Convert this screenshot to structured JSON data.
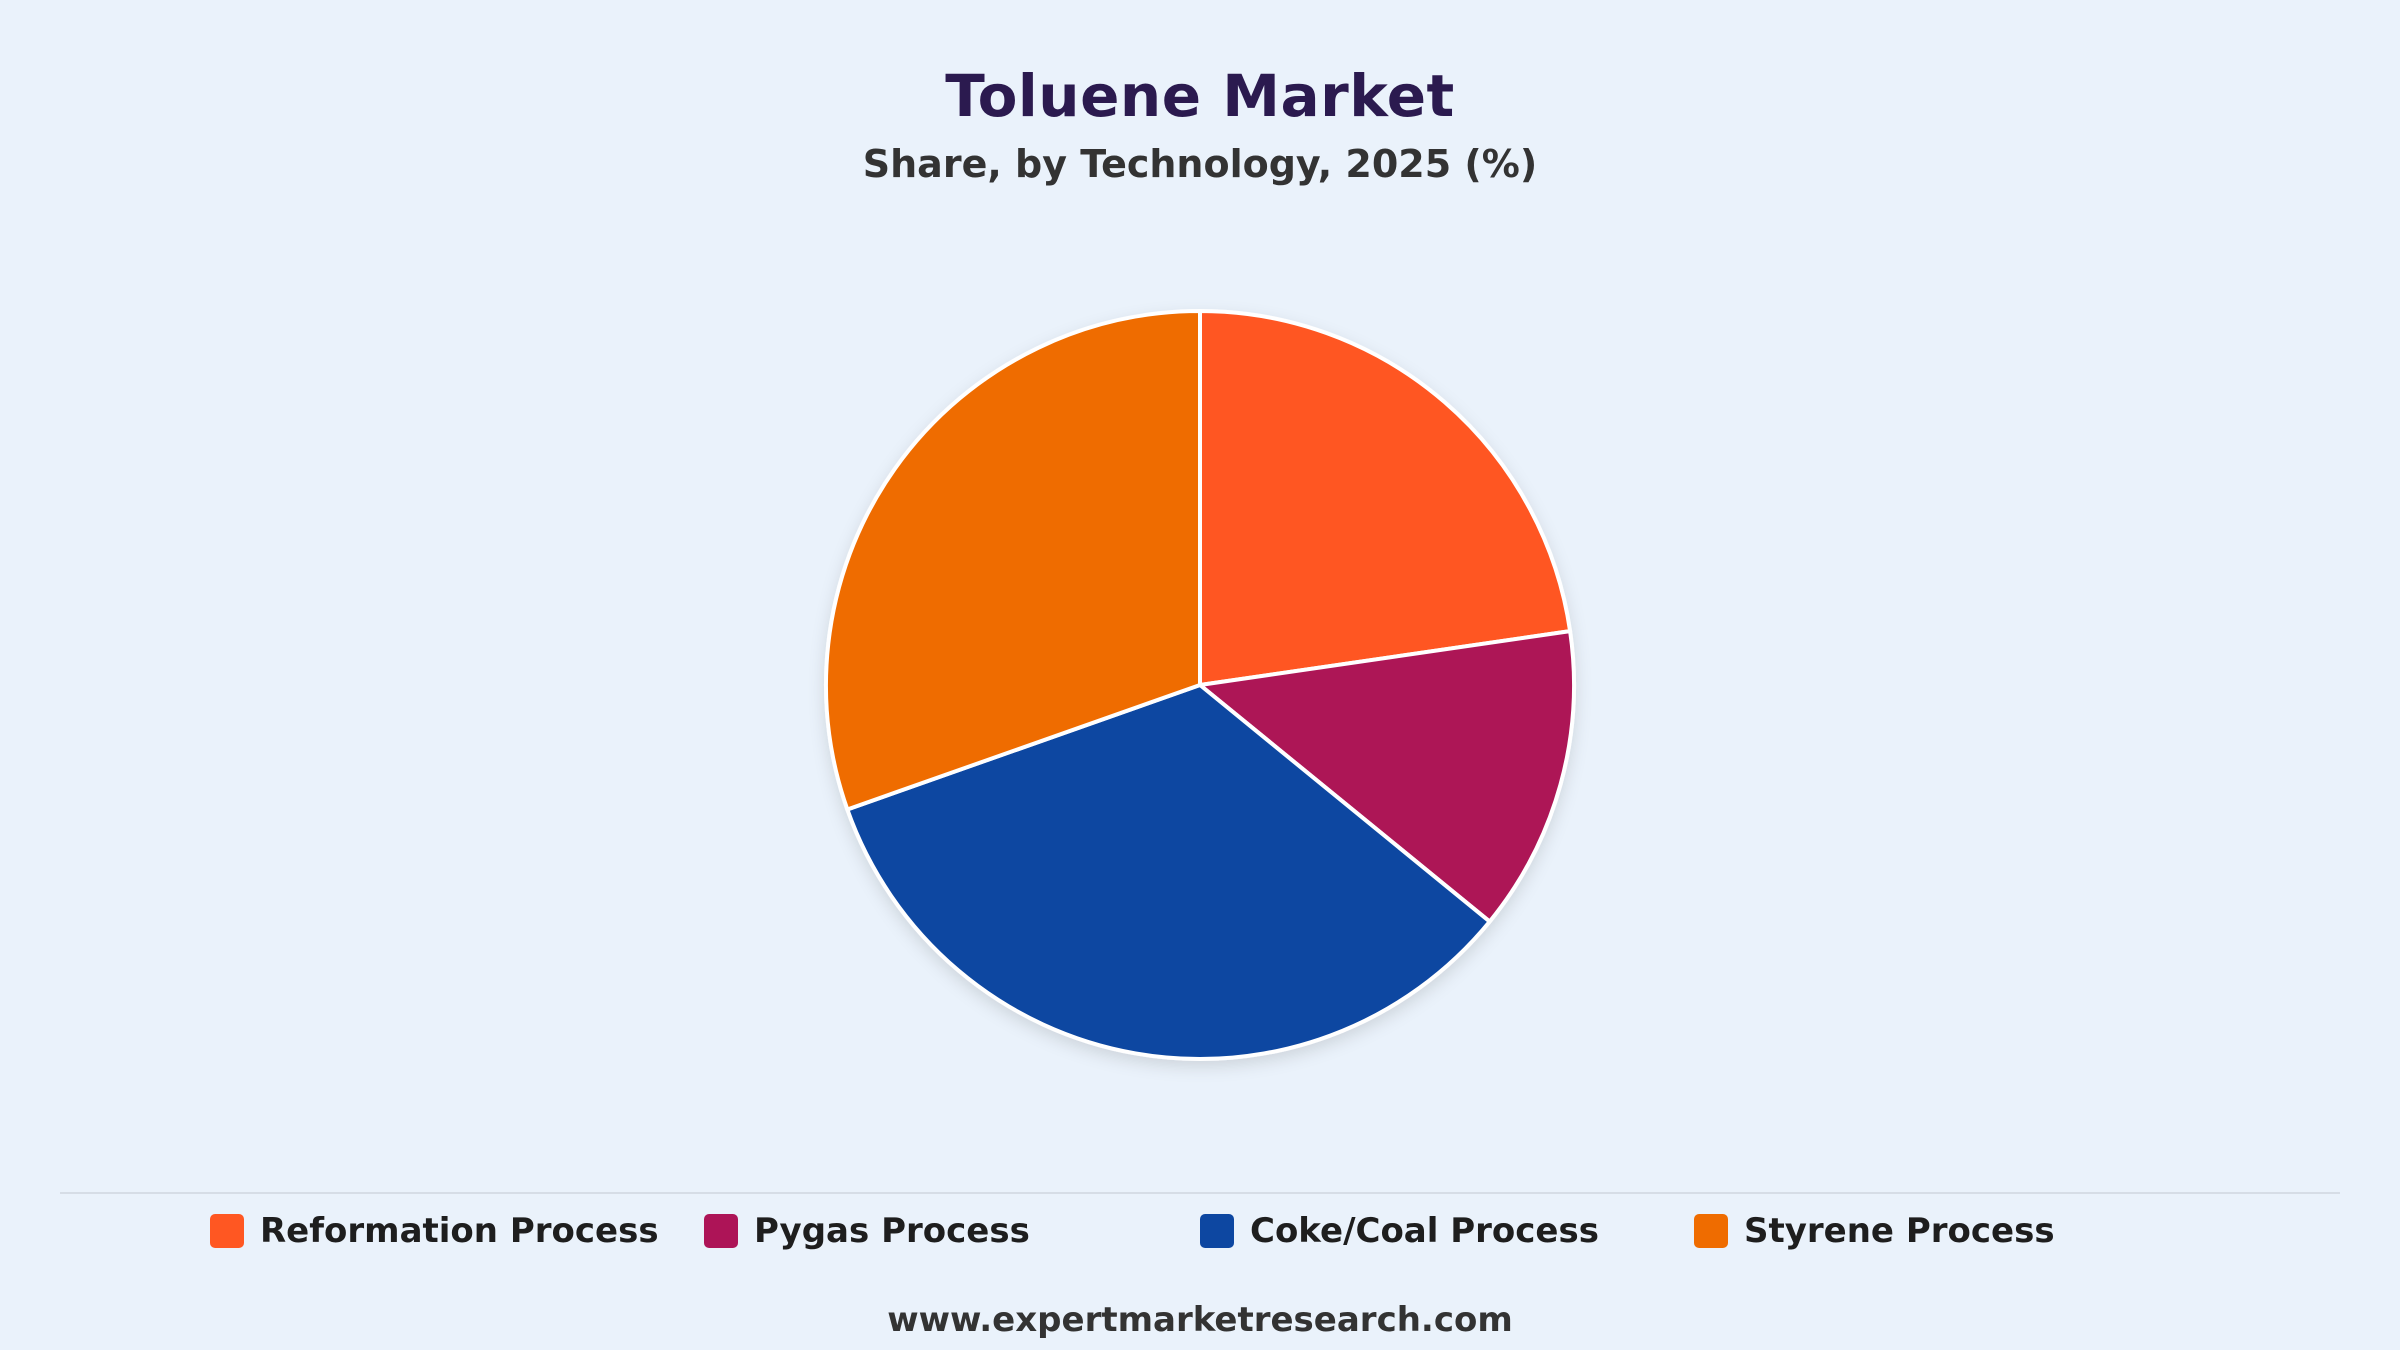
{
  "chart_data": {
    "type": "pie",
    "title": "Toluene Market",
    "subtitle": "Share, by Technology, 2025 (%)",
    "categories": [
      "Reformation Process",
      "Pygas Process",
      "Coke/Coal Process",
      "Styrene Process"
    ],
    "values": [
      22.7,
      13.2,
      33.7,
      30.4
    ],
    "colors": [
      "#ff5722",
      "#ad1457",
      "#0d47a1",
      "#ef6c00"
    ],
    "legend_position": "bottom"
  },
  "footer": {
    "website": "www.expertmarketresearch.com"
  }
}
